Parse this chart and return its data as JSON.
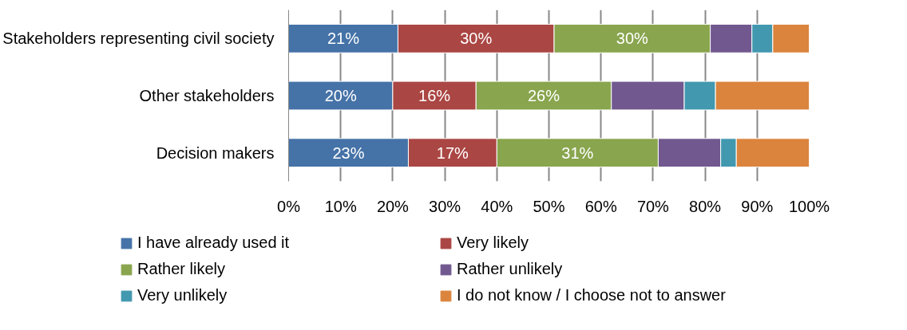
{
  "chart_data": {
    "type": "bar",
    "orientation": "horizontal",
    "stacked": true,
    "categories": [
      "Stakeholders representing civil society",
      "Other stakeholders",
      "Decision makers"
    ],
    "series": [
      {
        "name": "I have already used it",
        "color": "#4572a7",
        "values": [
          21,
          20,
          23
        ],
        "value_labels": [
          "21%",
          "20%",
          "23%"
        ]
      },
      {
        "name": "Very likely",
        "color": "#aa4643",
        "values": [
          30,
          16,
          17
        ],
        "value_labels": [
          "30%",
          "16%",
          "17%"
        ]
      },
      {
        "name": "Rather likely",
        "color": "#89a54e",
        "values": [
          30,
          26,
          31
        ],
        "value_labels": [
          "30%",
          "26%",
          "31%"
        ]
      },
      {
        "name": "Rather unlikely",
        "color": "#71588f",
        "values": [
          8,
          14,
          12
        ]
      },
      {
        "name": "Very unlikely",
        "color": "#4198af",
        "values": [
          4,
          6,
          3
        ]
      },
      {
        "name": "I do not know / I choose not to answer",
        "color": "#db843d",
        "values": [
          7,
          18,
          14
        ]
      }
    ],
    "xlim": [
      0,
      100
    ],
    "xticks": [
      {
        "value": 0,
        "label": "0%"
      },
      {
        "value": 10,
        "label": "10%"
      },
      {
        "value": 20,
        "label": "20%"
      },
      {
        "value": 30,
        "label": "30%"
      },
      {
        "value": 40,
        "label": "40%"
      },
      {
        "value": 50,
        "label": "50%"
      },
      {
        "value": 60,
        "label": "60%"
      },
      {
        "value": 70,
        "label": "70%"
      },
      {
        "value": 80,
        "label": "80%"
      },
      {
        "value": 90,
        "label": "90%"
      },
      {
        "value": 100,
        "label": "100%"
      }
    ],
    "grid": "x",
    "legend": "bottom"
  }
}
